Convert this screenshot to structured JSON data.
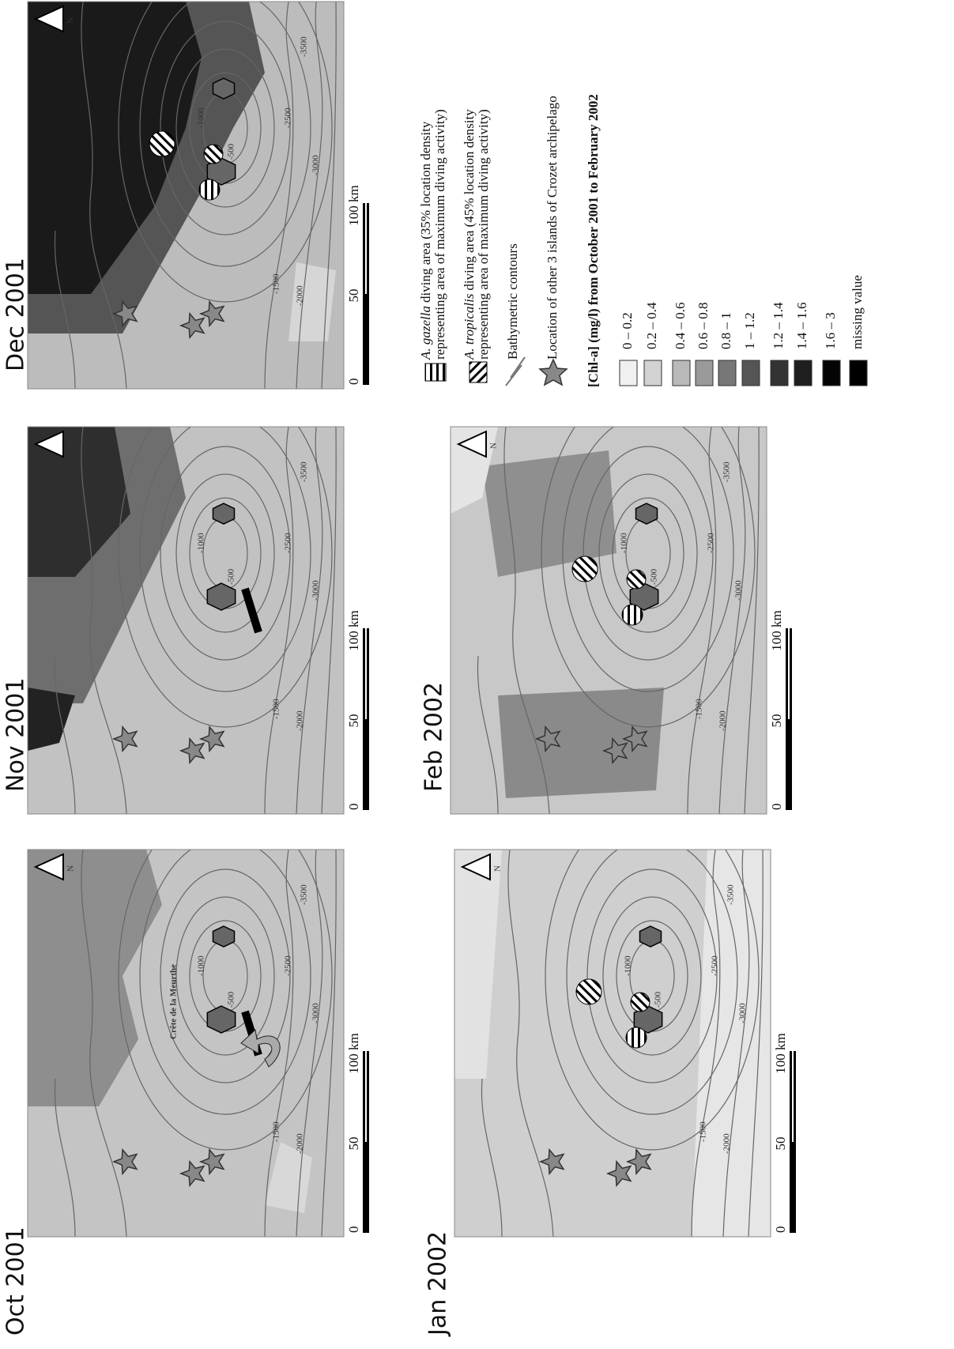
{
  "panels": [
    {
      "title": "Oct 2001"
    },
    {
      "title": "Nov 2001"
    },
    {
      "title": "Dec 2001"
    },
    {
      "title": "Jan 2002"
    },
    {
      "title": "Feb 2002"
    }
  ],
  "north_label": "N",
  "scale_labels": [
    "0",
    "50",
    "100 km"
  ],
  "contour_labels": [
    "-500",
    "-1000",
    "-1500",
    "-2000",
    "-2500",
    "-3000",
    "-3500"
  ],
  "annotation": "Crête de la Meurthe",
  "legend": {
    "items": [
      {
        "species": "A. gazella",
        "lines": [
          "diving area (35% location density",
          "representing area of maximum diving activity)"
        ]
      },
      {
        "species": "A. tropicalis",
        "lines": [
          "diving area (45% location density",
          "representing area of maximum diving activity)"
        ]
      },
      {
        "lines": [
          "Bathymetric contours"
        ]
      },
      {
        "lines": [
          "Location of other 3 islands of Crozet archipelago"
        ]
      }
    ],
    "title": "[Chl-a] (mg/l) from October 2001 to February 2002",
    "classes": [
      {
        "label": "0 – 0.2",
        "color": "#f0f0f0"
      },
      {
        "label": "0.2 – 0.4",
        "color": "#d2d2d2"
      },
      {
        "label": "0.4 – 0.6",
        "color": "#b9b9b9"
      },
      {
        "label": "0.6 – 0.8",
        "color": "#9a9a9a"
      },
      {
        "label": "0.8 – 1",
        "color": "#777777"
      },
      {
        "label": "1 – 1.2",
        "color": "#555555"
      },
      {
        "label": "1.2 – 1.4",
        "color": "#333333"
      },
      {
        "label": "1.4 – 1.6",
        "color": "#1e1e1e"
      },
      {
        "label": "1.6 – 3",
        "color": "#050505"
      },
      {
        "label": "missing value",
        "color": "#000000"
      }
    ]
  }
}
